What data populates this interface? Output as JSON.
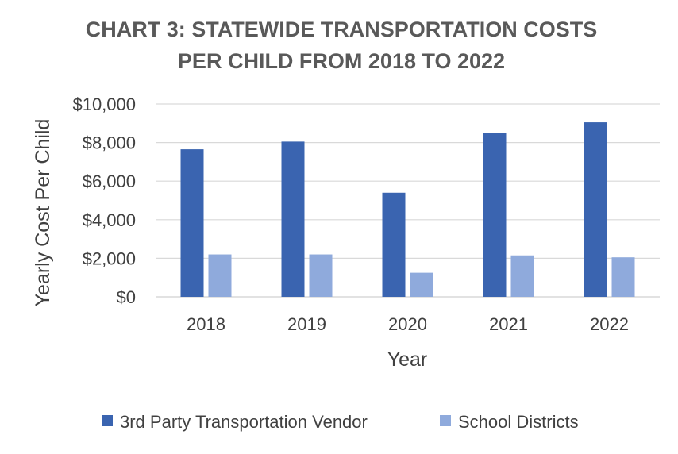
{
  "chart_data": {
    "type": "bar",
    "title_lines": [
      "CHART 3: STATEWIDE TRANSPORTATION COSTS",
      "PER CHILD FROM 2018 TO 2022"
    ],
    "xlabel": "Year",
    "ylabel": "Yearly Cost Per Child",
    "categories": [
      "2018",
      "2019",
      "2020",
      "2021",
      "2022"
    ],
    "ylim": [
      0,
      10000
    ],
    "y_ticks": [
      0,
      2000,
      4000,
      6000,
      8000,
      10000
    ],
    "y_tick_labels": [
      "$0",
      "$2,000",
      "$4,000",
      "$6,000",
      "$8,000",
      "$10,000"
    ],
    "grid": true,
    "legend_position": "bottom",
    "series": [
      {
        "name": "3rd Party Transportation Vendor",
        "color": "#3a64b0",
        "values": [
          7650,
          8050,
          5400,
          8500,
          9050
        ]
      },
      {
        "name": "School Districts",
        "color": "#8faadc",
        "values": [
          2200,
          2200,
          1250,
          2150,
          2050
        ]
      }
    ]
  }
}
